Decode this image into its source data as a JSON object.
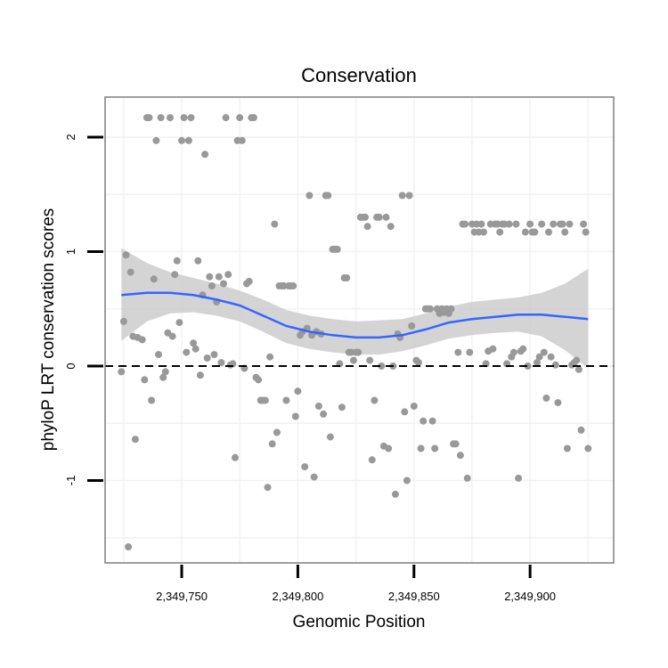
{
  "chart_data": {
    "type": "scatter",
    "title": "Conservation",
    "xlabel": "Genomic Position",
    "ylabel": "phyloP LRT conservation scores",
    "xlim": [
      2349717,
      2349936
    ],
    "ylim": [
      -1.72,
      2.35
    ],
    "x_ticks": [
      {
        "value": 2349750,
        "label": "2,349,750"
      },
      {
        "value": 2349800,
        "label": "2,349,800"
      },
      {
        "value": 2349850,
        "label": "2,349,850"
      },
      {
        "value": 2349900,
        "label": "2,349,900"
      }
    ],
    "y_ticks": [
      {
        "value": -1,
        "label": "-1"
      },
      {
        "value": 0,
        "label": "0"
      },
      {
        "value": 1,
        "label": "1"
      },
      {
        "value": 2,
        "label": "2"
      }
    ],
    "reference_line": {
      "y": 0,
      "style": "dashed",
      "color": "#000000"
    },
    "point_color": "#999999",
    "smooth_color": "#3366FF",
    "ribbon_color": "#cccccc",
    "points": [
      {
        "x": 2349724,
        "y": -0.05
      },
      {
        "x": 2349725,
        "y": 0.39
      },
      {
        "x": 2349726,
        "y": 0.97
      },
      {
        "x": 2349727,
        "y": -1.58
      },
      {
        "x": 2349728,
        "y": 0.82
      },
      {
        "x": 2349729,
        "y": 0.26
      },
      {
        "x": 2349730,
        "y": -0.64
      },
      {
        "x": 2349731,
        "y": 0.25
      },
      {
        "x": 2349733,
        "y": 0.23
      },
      {
        "x": 2349734,
        "y": -0.12
      },
      {
        "x": 2349735,
        "y": 2.17
      },
      {
        "x": 2349736,
        "y": 2.17
      },
      {
        "x": 2349737,
        "y": -0.3
      },
      {
        "x": 2349738,
        "y": 0.76
      },
      {
        "x": 2349739,
        "y": 1.97
      },
      {
        "x": 2349740,
        "y": 0.1
      },
      {
        "x": 2349741,
        "y": 2.17
      },
      {
        "x": 2349742,
        "y": -0.1
      },
      {
        "x": 2349743,
        "y": -0.05
      },
      {
        "x": 2349744,
        "y": 0.29
      },
      {
        "x": 2349745,
        "y": 2.17
      },
      {
        "x": 2349746,
        "y": 0.26
      },
      {
        "x": 2349747,
        "y": 0.8
      },
      {
        "x": 2349748,
        "y": 0.92
      },
      {
        "x": 2349749,
        "y": 0.38
      },
      {
        "x": 2349750,
        "y": 1.97
      },
      {
        "x": 2349751,
        "y": 2.17
      },
      {
        "x": 2349752,
        "y": 0.12
      },
      {
        "x": 2349753,
        "y": 1.97
      },
      {
        "x": 2349754,
        "y": 2.17
      },
      {
        "x": 2349755,
        "y": 0.2
      },
      {
        "x": 2349756,
        "y": 0.15
      },
      {
        "x": 2349757,
        "y": 0.92
      },
      {
        "x": 2349758,
        "y": -0.08
      },
      {
        "x": 2349759,
        "y": 0.62
      },
      {
        "x": 2349760,
        "y": 1.85
      },
      {
        "x": 2349761,
        "y": 0.07
      },
      {
        "x": 2349762,
        "y": 0.78
      },
      {
        "x": 2349763,
        "y": 0.7
      },
      {
        "x": 2349764,
        "y": 0.1
      },
      {
        "x": 2349765,
        "y": 0.56
      },
      {
        "x": 2349766,
        "y": 0.78
      },
      {
        "x": 2349767,
        "y": 0.03
      },
      {
        "x": 2349768,
        "y": 0.72
      },
      {
        "x": 2349769,
        "y": 2.17
      },
      {
        "x": 2349770,
        "y": 0.8
      },
      {
        "x": 2349771,
        "y": 0.01
      },
      {
        "x": 2349772,
        "y": 0.02
      },
      {
        "x": 2349773,
        "y": -0.8
      },
      {
        "x": 2349774,
        "y": 1.97
      },
      {
        "x": 2349775,
        "y": 2.17
      },
      {
        "x": 2349776,
        "y": 1.97
      },
      {
        "x": 2349777,
        "y": -0.02
      },
      {
        "x": 2349778,
        "y": 0.72
      },
      {
        "x": 2349779,
        "y": 0.74
      },
      {
        "x": 2349780,
        "y": 2.17
      },
      {
        "x": 2349781,
        "y": 2.17
      },
      {
        "x": 2349782,
        "y": -0.1
      },
      {
        "x": 2349783,
        "y": -0.12
      },
      {
        "x": 2349784,
        "y": -0.3
      },
      {
        "x": 2349785,
        "y": -0.3
      },
      {
        "x": 2349786,
        "y": -0.3
      },
      {
        "x": 2349787,
        "y": -1.06
      },
      {
        "x": 2349788,
        "y": 0.08
      },
      {
        "x": 2349789,
        "y": -0.68
      },
      {
        "x": 2349790,
        "y": 1.24
      },
      {
        "x": 2349791,
        "y": -0.58
      },
      {
        "x": 2349792,
        "y": 0.7
      },
      {
        "x": 2349793,
        "y": 0.7
      },
      {
        "x": 2349794,
        "y": 0.7
      },
      {
        "x": 2349795,
        "y": -0.3
      },
      {
        "x": 2349796,
        "y": 0.7
      },
      {
        "x": 2349797,
        "y": 0.7
      },
      {
        "x": 2349798,
        "y": 0.7
      },
      {
        "x": 2349799,
        "y": -0.44
      },
      {
        "x": 2349800,
        "y": -0.22
      },
      {
        "x": 2349801,
        "y": 0.27
      },
      {
        "x": 2349802,
        "y": 0.3
      },
      {
        "x": 2349803,
        "y": -0.88
      },
      {
        "x": 2349804,
        "y": 0.33
      },
      {
        "x": 2349805,
        "y": 1.49
      },
      {
        "x": 2349806,
        "y": 0.27
      },
      {
        "x": 2349807,
        "y": -0.97
      },
      {
        "x": 2349808,
        "y": 0.3
      },
      {
        "x": 2349809,
        "y": -0.35
      },
      {
        "x": 2349810,
        "y": 0.28
      },
      {
        "x": 2349811,
        "y": -0.42
      },
      {
        "x": 2349812,
        "y": 1.49
      },
      {
        "x": 2349813,
        "y": 1.49
      },
      {
        "x": 2349814,
        "y": -0.62
      },
      {
        "x": 2349815,
        "y": 1.02
      },
      {
        "x": 2349816,
        "y": 1.02
      },
      {
        "x": 2349817,
        "y": 1.02
      },
      {
        "x": 2349818,
        "y": 0.02
      },
      {
        "x": 2349819,
        "y": -0.36
      },
      {
        "x": 2349820,
        "y": 0.77
      },
      {
        "x": 2349821,
        "y": 0.77
      },
      {
        "x": 2349822,
        "y": 0.12
      },
      {
        "x": 2349823,
        "y": 0.12
      },
      {
        "x": 2349824,
        "y": 0.05
      },
      {
        "x": 2349825,
        "y": 0.12
      },
      {
        "x": 2349826,
        "y": 0.12
      },
      {
        "x": 2349827,
        "y": 1.3
      },
      {
        "x": 2349828,
        "y": 1.3
      },
      {
        "x": 2349829,
        "y": 1.3
      },
      {
        "x": 2349830,
        "y": 1.22
      },
      {
        "x": 2349831,
        "y": 0.05
      },
      {
        "x": 2349832,
        "y": -0.82
      },
      {
        "x": 2349833,
        "y": -0.3
      },
      {
        "x": 2349834,
        "y": 1.3
      },
      {
        "x": 2349835,
        "y": 1.3
      },
      {
        "x": 2349836,
        "y": 0.0
      },
      {
        "x": 2349837,
        "y": -0.7
      },
      {
        "x": 2349838,
        "y": 1.3
      },
      {
        "x": 2349839,
        "y": -0.72
      },
      {
        "x": 2349840,
        "y": 1.22
      },
      {
        "x": 2349841,
        "y": 0.0
      },
      {
        "x": 2349842,
        "y": -1.12
      },
      {
        "x": 2349843,
        "y": 0.28
      },
      {
        "x": 2349844,
        "y": 0.25
      },
      {
        "x": 2349845,
        "y": 1.49
      },
      {
        "x": 2349846,
        "y": -0.4
      },
      {
        "x": 2349847,
        "y": -1.0
      },
      {
        "x": 2349848,
        "y": 1.49
      },
      {
        "x": 2349849,
        "y": 0.35
      },
      {
        "x": 2349850,
        "y": -0.35
      },
      {
        "x": 2349851,
        "y": 0.05
      },
      {
        "x": 2349852,
        "y": 0.03
      },
      {
        "x": 2349853,
        "y": -0.72
      },
      {
        "x": 2349854,
        "y": -0.48
      },
      {
        "x": 2349855,
        "y": 0.5
      },
      {
        "x": 2349856,
        "y": 0.5
      },
      {
        "x": 2349857,
        "y": 0.5
      },
      {
        "x": 2349858,
        "y": -0.48
      },
      {
        "x": 2349859,
        "y": -0.72
      },
      {
        "x": 2349860,
        "y": 0.5
      },
      {
        "x": 2349861,
        "y": 0.46
      },
      {
        "x": 2349862,
        "y": 0.5
      },
      {
        "x": 2349863,
        "y": 0.47
      },
      {
        "x": 2349864,
        "y": 0.5
      },
      {
        "x": 2349865,
        "y": 0.46
      },
      {
        "x": 2349866,
        "y": 0.5
      },
      {
        "x": 2349867,
        "y": -0.68
      },
      {
        "x": 2349868,
        "y": -0.68
      },
      {
        "x": 2349869,
        "y": 0.12
      },
      {
        "x": 2349870,
        "y": -0.78
      },
      {
        "x": 2349871,
        "y": 1.24
      },
      {
        "x": 2349872,
        "y": 1.24
      },
      {
        "x": 2349873,
        "y": -0.98
      },
      {
        "x": 2349874,
        "y": 0.12
      },
      {
        "x": 2349875,
        "y": 1.24
      },
      {
        "x": 2349876,
        "y": 1.17
      },
      {
        "x": 2349877,
        "y": 1.24
      },
      {
        "x": 2349878,
        "y": 1.17
      },
      {
        "x": 2349879,
        "y": 1.24
      },
      {
        "x": 2349880,
        "y": 1.17
      },
      {
        "x": 2349881,
        "y": 0.02
      },
      {
        "x": 2349882,
        "y": 0.13
      },
      {
        "x": 2349883,
        "y": 1.24
      },
      {
        "x": 2349884,
        "y": 0.15
      },
      {
        "x": 2349885,
        "y": 1.24
      },
      {
        "x": 2349886,
        "y": 1.24
      },
      {
        "x": 2349887,
        "y": 1.17
      },
      {
        "x": 2349888,
        "y": 1.24
      },
      {
        "x": 2349889,
        "y": 1.24
      },
      {
        "x": 2349890,
        "y": 0.02
      },
      {
        "x": 2349891,
        "y": 1.24
      },
      {
        "x": 2349892,
        "y": 0.08
      },
      {
        "x": 2349893,
        "y": 0.12
      },
      {
        "x": 2349894,
        "y": 1.24
      },
      {
        "x": 2349895,
        "y": -0.98
      },
      {
        "x": 2349896,
        "y": 0.13
      },
      {
        "x": 2349897,
        "y": 0.15
      },
      {
        "x": 2349898,
        "y": 1.17
      },
      {
        "x": 2349899,
        "y": 0.0
      },
      {
        "x": 2349900,
        "y": 1.24
      },
      {
        "x": 2349901,
        "y": 1.17
      },
      {
        "x": 2349902,
        "y": 1.17
      },
      {
        "x": 2349903,
        "y": 0.03
      },
      {
        "x": 2349904,
        "y": 0.08
      },
      {
        "x": 2349905,
        "y": 1.24
      },
      {
        "x": 2349906,
        "y": 0.12
      },
      {
        "x": 2349907,
        "y": -0.28
      },
      {
        "x": 2349908,
        "y": 1.17
      },
      {
        "x": 2349909,
        "y": 0.08
      },
      {
        "x": 2349910,
        "y": 1.24
      },
      {
        "x": 2349911,
        "y": 0.01
      },
      {
        "x": 2349912,
        "y": -0.32
      },
      {
        "x": 2349913,
        "y": 1.24
      },
      {
        "x": 2349914,
        "y": 1.24
      },
      {
        "x": 2349915,
        "y": 1.17
      },
      {
        "x": 2349916,
        "y": -0.72
      },
      {
        "x": 2349917,
        "y": 1.24
      },
      {
        "x": 2349918,
        "y": 0.01
      },
      {
        "x": 2349919,
        "y": 0.03
      },
      {
        "x": 2349920,
        "y": 0.05
      },
      {
        "x": 2349921,
        "y": -0.03
      },
      {
        "x": 2349922,
        "y": -0.56
      },
      {
        "x": 2349923,
        "y": 1.24
      },
      {
        "x": 2349924,
        "y": 1.17
      },
      {
        "x": 2349925,
        "y": -0.72
      }
    ],
    "smooth_fit": [
      {
        "x": 2349724,
        "y": 0.62,
        "lo": 0.22,
        "hi": 1.03
      },
      {
        "x": 2349735,
        "y": 0.64,
        "lo": 0.39,
        "hi": 0.9
      },
      {
        "x": 2349745,
        "y": 0.64,
        "lo": 0.46,
        "hi": 0.82
      },
      {
        "x": 2349755,
        "y": 0.62,
        "lo": 0.47,
        "hi": 0.77
      },
      {
        "x": 2349765,
        "y": 0.58,
        "lo": 0.44,
        "hi": 0.72
      },
      {
        "x": 2349775,
        "y": 0.53,
        "lo": 0.39,
        "hi": 0.66
      },
      {
        "x": 2349785,
        "y": 0.44,
        "lo": 0.3,
        "hi": 0.58
      },
      {
        "x": 2349795,
        "y": 0.35,
        "lo": 0.2,
        "hi": 0.49
      },
      {
        "x": 2349805,
        "y": 0.3,
        "lo": 0.15,
        "hi": 0.44
      },
      {
        "x": 2349815,
        "y": 0.27,
        "lo": 0.12,
        "hi": 0.41
      },
      {
        "x": 2349825,
        "y": 0.25,
        "lo": 0.1,
        "hi": 0.39
      },
      {
        "x": 2349835,
        "y": 0.25,
        "lo": 0.1,
        "hi": 0.4
      },
      {
        "x": 2349845,
        "y": 0.27,
        "lo": 0.13,
        "hi": 0.41
      },
      {
        "x": 2349855,
        "y": 0.32,
        "lo": 0.18,
        "hi": 0.46
      },
      {
        "x": 2349865,
        "y": 0.38,
        "lo": 0.24,
        "hi": 0.52
      },
      {
        "x": 2349875,
        "y": 0.41,
        "lo": 0.27,
        "hi": 0.56
      },
      {
        "x": 2349885,
        "y": 0.43,
        "lo": 0.29,
        "hi": 0.58
      },
      {
        "x": 2349895,
        "y": 0.45,
        "lo": 0.3,
        "hi": 0.6
      },
      {
        "x": 2349905,
        "y": 0.45,
        "lo": 0.26,
        "hi": 0.64
      },
      {
        "x": 2349915,
        "y": 0.43,
        "lo": 0.14,
        "hi": 0.72
      },
      {
        "x": 2349925,
        "y": 0.41,
        "lo": -0.02,
        "hi": 0.85
      }
    ]
  }
}
